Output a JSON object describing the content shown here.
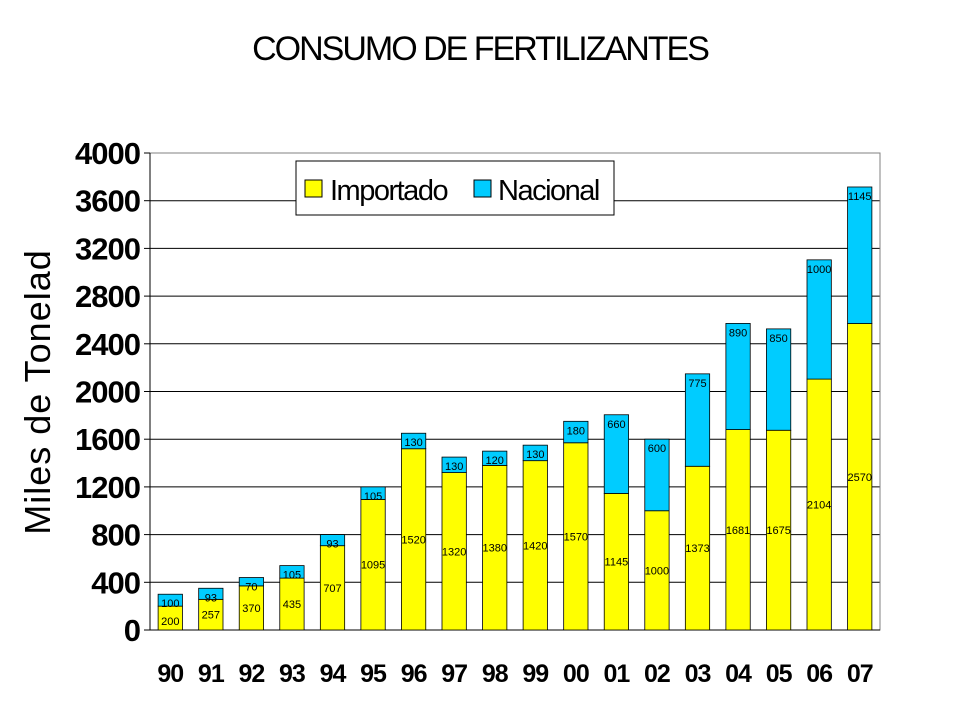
{
  "chart_data": {
    "type": "bar",
    "stacked": true,
    "title": "CONSUMO DE FERTILIZANTES",
    "ylabel": "Miles de Tonelad",
    "xlabel": "",
    "ylim": [
      0,
      4000
    ],
    "yticks": [
      "0",
      "400",
      "800",
      "1200",
      "1600",
      "2000",
      "2400",
      "2800",
      "3200",
      "3600",
      "4000"
    ],
    "grid": true,
    "legend_position": "top-left",
    "categories": [
      "90",
      "91",
      "92",
      "93",
      "94",
      "95",
      "96",
      "97",
      "98",
      "99",
      "00",
      "01",
      "02",
      "03",
      "04",
      "05",
      "06",
      "07"
    ],
    "series": [
      {
        "name": "Importado",
        "color": "#ffff00",
        "values": [
          200,
          257,
          370,
          435,
          707,
          1095,
          1520,
          1320,
          1380,
          1420,
          1570,
          1145,
          1000,
          1373,
          1681,
          1675,
          2104,
          2570
        ],
        "labels": [
          "200",
          "257",
          "370",
          "435",
          "707",
          "1095",
          "1520",
          "1320",
          "1380",
          "1420",
          "1570",
          "1145",
          "1000",
          "1373",
          "1681",
          "1675",
          "2104",
          "2570"
        ]
      },
      {
        "name": "Nacional",
        "color": "#00ccff",
        "values": [
          100,
          93,
          70,
          105,
          93,
          105,
          130,
          130,
          120,
          130,
          180,
          660,
          600,
          775,
          890,
          850,
          1000,
          1145
        ],
        "labels": [
          "100",
          "93",
          "70",
          "105",
          "93",
          "105",
          "130",
          "130",
          "120",
          "130",
          "180",
          "660",
          "600",
          "775",
          "890",
          "850",
          "1000",
          "1145"
        ]
      }
    ]
  }
}
